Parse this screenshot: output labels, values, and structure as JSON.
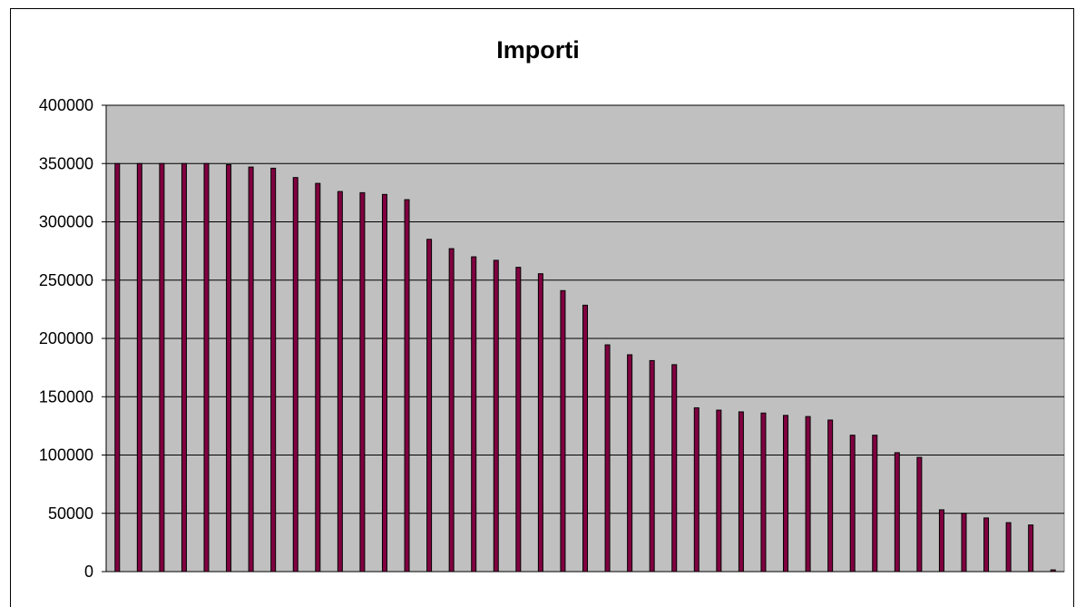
{
  "chart_data": {
    "type": "bar",
    "title": "Importi",
    "xlabel": "",
    "ylabel": "",
    "ylim": [
      0,
      400000
    ],
    "yticks": [
      "0",
      "50000",
      "100000",
      "150000",
      "200000",
      "250000",
      "300000",
      "350000",
      "400000"
    ],
    "grid": true,
    "legend": "none",
    "colors": {
      "plot_background": "#c0c0c0",
      "bar_fill": "#800040",
      "bar_edge": "#000000",
      "gridline": "#000000"
    },
    "values": [
      350000,
      350000,
      350000,
      350000,
      350000,
      349000,
      347000,
      346000,
      338000,
      333000,
      326000,
      325000,
      323500,
      319000,
      285000,
      277000,
      270000,
      267000,
      261000,
      255500,
      241000,
      228500,
      194500,
      186000,
      181000,
      177500,
      140500,
      138500,
      137000,
      136000,
      134000,
      133000,
      130000,
      117000,
      117000,
      102000,
      98000,
      53000,
      50000,
      46000,
      42000,
      40000,
      1500
    ]
  }
}
